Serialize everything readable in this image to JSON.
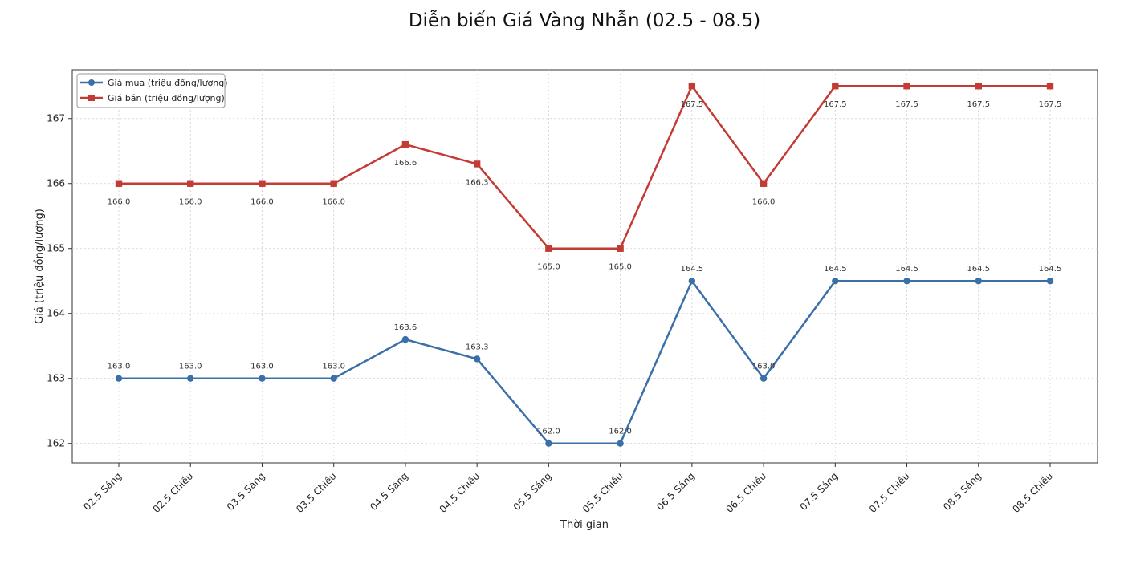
{
  "chart_data": {
    "type": "line",
    "title": "Diễn biến Giá Vàng Nhẫn (02.5 - 08.5)",
    "xlabel": "Thời gian",
    "ylabel": "Giá (triệu đồng/lượng)",
    "categories": [
      "02.5 Sáng",
      "02.5 Chiều",
      "03.5 Sáng",
      "03.5 Chiều",
      "04.5 Sáng",
      "04.5 Chiều",
      "05.5 Sáng",
      "05.5 Chiều",
      "06.5 Sáng",
      "06.5 Chiều",
      "07.5 Sáng",
      "07.5 Chiều",
      "08.5 Sáng",
      "08.5 Chiều"
    ],
    "ylim": [
      161.7,
      167.75
    ],
    "yticks": [
      162,
      163,
      164,
      165,
      166,
      167
    ],
    "grid": true,
    "legend_position": "top-left",
    "series": [
      {
        "name": "Giá mua (triệu đồng/lượng)",
        "color": "#3b6fa8",
        "marker": "circle",
        "values": [
          163.0,
          163.0,
          163.0,
          163.0,
          163.6,
          163.3,
          162.0,
          162.0,
          164.5,
          163.0,
          164.5,
          164.5,
          164.5,
          164.5
        ],
        "value_labels": [
          "163.0",
          "163.0",
          "163.0",
          "163.0",
          "163.6",
          "163.3",
          "162.0",
          "162.0",
          "164.5",
          "163.0",
          "164.5",
          "164.5",
          "164.5",
          "164.5"
        ],
        "label_position": "above"
      },
      {
        "name": "Giá bán (triệu đồng/lượng)",
        "color": "#c23b34",
        "marker": "square",
        "values": [
          166.0,
          166.0,
          166.0,
          166.0,
          166.6,
          166.3,
          165.0,
          165.0,
          167.5,
          166.0,
          167.5,
          167.5,
          167.5,
          167.5
        ],
        "value_labels": [
          "166.0",
          "166.0",
          "166.0",
          "166.0",
          "166.6",
          "166.3",
          "165.0",
          "165.0",
          "167.5",
          "166.0",
          "167.5",
          "167.5",
          "167.5",
          "167.5"
        ],
        "label_position": "below"
      }
    ]
  }
}
